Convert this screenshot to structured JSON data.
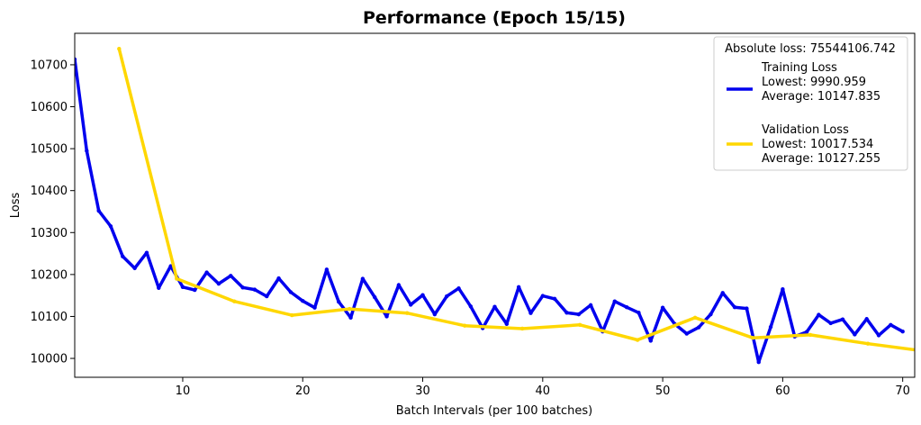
{
  "chart_data": {
    "type": "line",
    "title": "Performance (Epoch 15/15)",
    "xlabel": "Batch Intervals (per 100 batches)",
    "ylabel": "Loss",
    "xlim": [
      1,
      71
    ],
    "ylim": [
      9955,
      10775
    ],
    "xticks": [
      10,
      20,
      30,
      40,
      50,
      60,
      70
    ],
    "yticks": [
      10000,
      10100,
      10200,
      10300,
      10400,
      10500,
      10600,
      10700
    ],
    "grid": false,
    "legend": {
      "position": "top-right",
      "title": "Absolute loss: 75544106.742",
      "entries": [
        {
          "series": 0,
          "lines": [
            "Training Loss",
            "Lowest: 9990.959",
            "Average: 10147.835"
          ]
        },
        {
          "series": 1,
          "lines": [
            "Validation Loss",
            "Lowest: 10017.534",
            "Average: 10127.255"
          ]
        }
      ]
    },
    "series": [
      {
        "name": "Training Loss",
        "color": "#0000ee",
        "x": [
          1,
          2,
          3,
          4,
          5,
          6,
          7,
          8,
          9,
          10,
          11,
          12,
          13,
          14,
          15,
          16,
          17,
          18,
          19,
          20,
          21,
          22,
          23,
          24,
          25,
          26,
          27,
          28,
          29,
          30,
          31,
          32,
          33,
          34,
          35,
          36,
          37,
          38,
          39,
          40,
          41,
          42,
          43,
          44,
          45,
          46,
          47,
          48,
          49,
          50,
          51,
          52,
          53,
          54,
          55,
          56,
          57,
          58,
          59,
          60,
          61,
          62,
          63,
          64,
          65,
          66,
          67,
          68,
          69,
          70
        ],
        "values": [
          10713,
          10495,
          10352,
          10315,
          10243,
          10215,
          10252,
          10168,
          10220,
          10170,
          10163,
          10205,
          10178,
          10197,
          10169,
          10164,
          10148,
          10191,
          10158,
          10137,
          10121,
          10212,
          10135,
          10097,
          10190,
          10146,
          10100,
          10175,
          10128,
          10151,
          10105,
          10148,
          10167,
          10124,
          10072,
          10123,
          10082,
          10170,
          10108,
          10149,
          10142,
          10109,
          10105,
          10127,
          10064,
          10136,
          10122,
          10109,
          10042,
          10121,
          10082,
          10059,
          10074,
          10105,
          10156,
          10122,
          10119,
          9991,
          10075,
          10165,
          10052,
          10063,
          10104,
          10084,
          10093,
          10057,
          10094,
          10055,
          10080,
          10064
        ]
      },
      {
        "name": "Validation Loss",
        "color": "#ffd700",
        "x": [
          4.7,
          9.5,
          14.3,
          19.1,
          23.9,
          28.7,
          33.5,
          38.3,
          43.1,
          47.9,
          52.7,
          57.5,
          62.3,
          67.1,
          71.9
        ],
        "values": [
          10738,
          10190,
          10136,
          10103,
          10118,
          10108,
          10078,
          10071,
          10080,
          10044,
          10097,
          10049,
          10056,
          10035,
          10017
        ]
      }
    ]
  }
}
